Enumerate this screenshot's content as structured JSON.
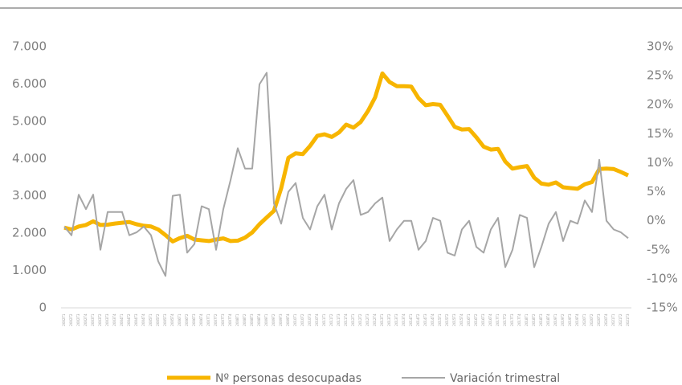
{
  "chart_data": {
    "type": "line",
    "categories": [
      "2002T1",
      "2002T2",
      "2002T3",
      "2002T4",
      "2003T1",
      "2003T2",
      "2003T3",
      "2003T4",
      "2004T1",
      "2004T2",
      "2004T3",
      "2004T4",
      "2005T1",
      "2005T2",
      "2005T3",
      "2005T4",
      "2006T1",
      "2006T2",
      "2006T3",
      "2006T4",
      "2007T1",
      "2007T2",
      "2007T3",
      "2007T4",
      "2008T1",
      "2008T2",
      "2008T3",
      "2008T4",
      "2009T1",
      "2009T2",
      "2009T3",
      "2009T4",
      "2010T1",
      "2010T2",
      "2010T3",
      "2010T4",
      "2011T1",
      "2011T2",
      "2011T3",
      "2011T4",
      "2012T1",
      "2012T2",
      "2012T3",
      "2012T4",
      "2013T1",
      "2013T2",
      "2013T3",
      "2013T4",
      "2014T1",
      "2014T2",
      "2014T3",
      "2014T4",
      "2015T1",
      "2015T2",
      "2015T3",
      "2015T4",
      "2016T1",
      "2016T2",
      "2016T3",
      "2016T4",
      "2017T1",
      "2017T2",
      "2017T3",
      "2017T4",
      "2018T1",
      "2018T2",
      "2018T3",
      "2018T4",
      "2019T1",
      "2019T2",
      "2019T3",
      "2019T4",
      "2020T1",
      "2020T2",
      "2020T3",
      "2020T4",
      "2021T1",
      "2021T2",
      "2021T3"
    ],
    "series": [
      {
        "name": "Nº personas desocupadas",
        "color": "#f7b500",
        "axis": "y",
        "values": [
          2150,
          2100,
          2180,
          2220,
          2320,
          2220,
          2230,
          2260,
          2280,
          2300,
          2240,
          2200,
          2180,
          2100,
          1950,
          1780,
          1870,
          1930,
          1830,
          1810,
          1790,
          1830,
          1860,
          1790,
          1800,
          1880,
          2020,
          2240,
          2420,
          2600,
          3200,
          4020,
          4140,
          4120,
          4340,
          4610,
          4650,
          4580,
          4700,
          4910,
          4830,
          4980,
          5270,
          5640,
          6280,
          6050,
          5940,
          5940,
          5930,
          5620,
          5430,
          5460,
          5440,
          5150,
          4850,
          4780,
          4790,
          4570,
          4320,
          4240,
          4260,
          3920,
          3730,
          3770,
          3800,
          3490,
          3330,
          3300,
          3360,
          3230,
          3210,
          3190,
          3310,
          3370,
          3720,
          3730,
          3720,
          3640,
          3550
        ]
      },
      {
        "name": "Variación trimestral",
        "color": "#a6a6a6",
        "axis": "y2",
        "values": [
          -1,
          -2.5,
          4.5,
          2,
          4.5,
          -5,
          1.5,
          1.5,
          1.5,
          -2.5,
          -2,
          -1,
          -2.5,
          -7,
          -9.5,
          4.3,
          4.5,
          -5.5,
          -4,
          2.5,
          2,
          -5,
          2,
          7,
          12.5,
          9,
          9,
          23.5,
          25.5,
          3,
          -0.5,
          5,
          6.5,
          0.5,
          -1.5,
          2.5,
          4.5,
          -1.5,
          3,
          5.5,
          7,
          1,
          1.5,
          3,
          4,
          -3.5,
          -1.5,
          0,
          0,
          -5,
          -3.5,
          0.5,
          0,
          -5.5,
          -6,
          -1.5,
          0,
          -4.5,
          -5.5,
          -1.5,
          0.5,
          -8,
          -5,
          1,
          0.5,
          -8,
          -4.5,
          -0.5,
          1.5,
          -3.5,
          0,
          -0.5,
          3.5,
          1.5,
          10.5,
          0,
          -1.5,
          -2,
          -3
        ]
      }
    ],
    "ylim": [
      0,
      7000
    ],
    "yticks": [
      0,
      {
        "value": 1000,
        "label": "1.000"
      },
      {
        "value": 2000,
        "label": "2.000"
      },
      {
        "value": 3000,
        "label": "3.000"
      },
      {
        "value": 4000,
        "label": "4.000"
      },
      {
        "value": 5000,
        "label": "5.000"
      },
      {
        "value": 6000,
        "label": "6.000"
      },
      {
        "value": 7000,
        "label": "7.000"
      }
    ],
    "y2lim": [
      -15,
      30
    ],
    "y2ticks": [
      {
        "value": -15,
        "label": "-15%"
      },
      {
        "value": -10,
        "label": "-10%"
      },
      {
        "value": -5,
        "label": "-5%"
      },
      {
        "value": 0,
        "label": "0%"
      },
      {
        "value": 5,
        "label": "5%"
      },
      {
        "value": 10,
        "label": "10%"
      },
      {
        "value": 15,
        "label": "15%"
      },
      {
        "value": 20,
        "label": "20%"
      },
      {
        "value": 25,
        "label": "25%"
      },
      {
        "value": 30,
        "label": "30%"
      }
    ],
    "grid": false,
    "legend": "bottom"
  }
}
